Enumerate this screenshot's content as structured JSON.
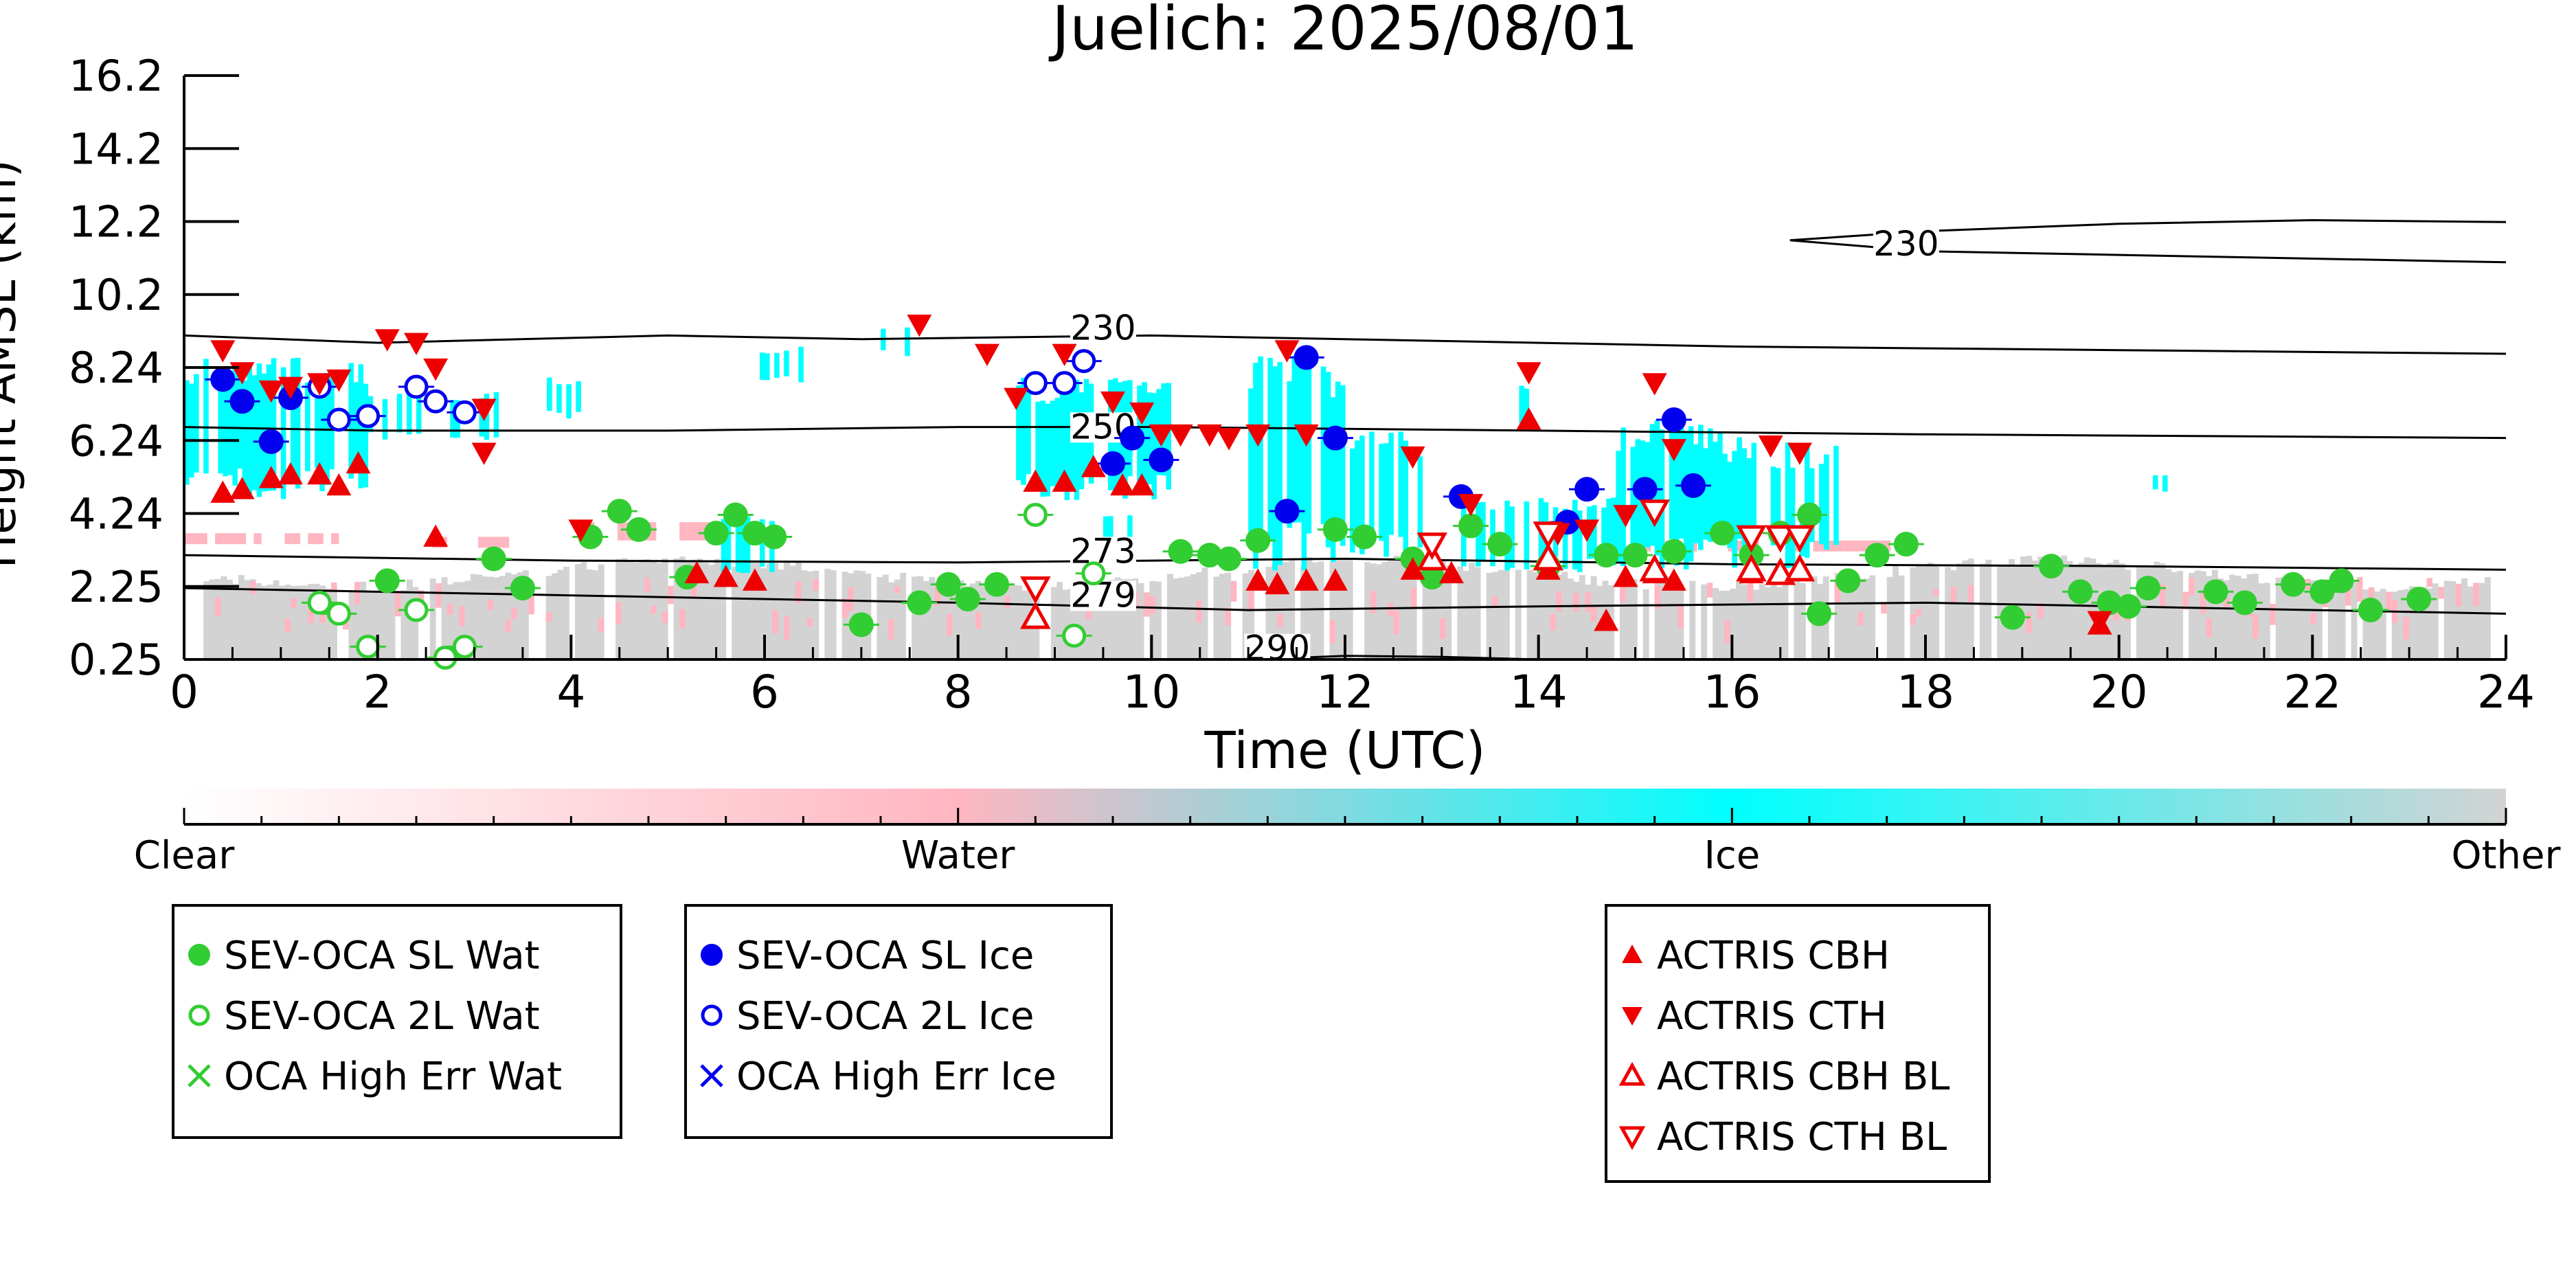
{
  "chart_data": {
    "type": "scatter",
    "title": "Juelich: 2025/08/01",
    "xlabel": "Time (UTC)",
    "ylabel": "Height AMSL (km)",
    "xlim": [
      0,
      24
    ],
    "ylim": [
      0.25,
      16.2
    ],
    "x_ticks": [
      0,
      2,
      4,
      6,
      8,
      10,
      12,
      14,
      16,
      18,
      20,
      22,
      24
    ],
    "y_tick_labels": [
      "0.25",
      "2.25",
      "4.24",
      "6.24",
      "8.24",
      "10.2",
      "12.2",
      "14.2",
      "16.2"
    ],
    "colorbar": {
      "labels": [
        "Clear",
        "Water",
        "Ice",
        "Other"
      ],
      "colors": [
        "#ffffff",
        "#ffb6c1",
        "#00ffff",
        "#d3d3d3"
      ]
    },
    "legends": [
      {
        "entries": [
          {
            "label": "SEV-OCA SL Wat",
            "marker": "filled-circle",
            "color": "#32cd32"
          },
          {
            "label": "SEV-OCA 2L Wat",
            "marker": "open-circle",
            "color": "#32cd32"
          },
          {
            "label": "OCA High Err Wat",
            "marker": "x",
            "color": "#32cd32"
          }
        ]
      },
      {
        "entries": [
          {
            "label": "SEV-OCA SL Ice",
            "marker": "filled-circle",
            "color": "#0000ee"
          },
          {
            "label": "SEV-OCA 2L Ice",
            "marker": "open-circle",
            "color": "#0000ee"
          },
          {
            "label": "OCA High Err Ice",
            "marker": "x",
            "color": "#0000ee"
          }
        ]
      },
      {
        "entries": [
          {
            "label": "ACTRIS CBH",
            "marker": "triangle-up",
            "color": "#ee0000"
          },
          {
            "label": "ACTRIS CTH",
            "marker": "triangle-down",
            "color": "#ee0000"
          },
          {
            "label": "ACTRIS CBH BL",
            "marker": "open-triangle-up",
            "color": "#ee0000"
          },
          {
            "label": "ACTRIS CTH BL",
            "marker": "open-triangle-down",
            "color": "#ee0000"
          }
        ]
      }
    ],
    "contours": [
      {
        "label": "230",
        "points": [
          [
            0,
            9.1
          ],
          [
            2,
            8.9
          ],
          [
            5,
            9.1
          ],
          [
            7,
            9.0
          ],
          [
            10,
            9.1
          ],
          [
            12,
            9.0
          ],
          [
            16,
            8.8
          ],
          [
            20,
            8.7
          ],
          [
            24,
            8.6
          ]
        ]
      },
      {
        "label": "230",
        "points": [
          [
            16.6,
            11.7
          ],
          [
            18,
            11.95
          ],
          [
            20,
            12.15
          ],
          [
            22,
            12.25
          ],
          [
            24,
            12.2
          ]
        ]
      },
      {
        "label": "230",
        "points": [
          [
            16.6,
            11.7
          ],
          [
            18,
            11.4
          ],
          [
            20,
            11.3
          ],
          [
            22,
            11.2
          ],
          [
            24,
            11.1
          ]
        ]
      },
      {
        "label": "250",
        "points": [
          [
            0,
            6.6
          ],
          [
            2,
            6.5
          ],
          [
            5,
            6.5
          ],
          [
            8,
            6.6
          ],
          [
            10,
            6.6
          ],
          [
            14,
            6.5
          ],
          [
            18,
            6.4
          ],
          [
            24,
            6.3
          ]
        ]
      },
      {
        "label": "273",
        "points": [
          [
            0,
            3.1
          ],
          [
            4,
            2.95
          ],
          [
            8,
            2.9
          ],
          [
            12,
            3.0
          ],
          [
            16,
            2.85
          ],
          [
            20,
            2.8
          ],
          [
            24,
            2.7
          ]
        ]
      },
      {
        "label": "279",
        "points": [
          [
            0,
            2.2
          ],
          [
            4,
            2.0
          ],
          [
            8,
            1.8
          ],
          [
            11,
            1.6
          ],
          [
            14,
            1.7
          ],
          [
            18,
            1.8
          ],
          [
            24,
            1.5
          ]
        ]
      },
      {
        "label": "290",
        "points": [
          [
            11.1,
            0.25
          ],
          [
            12,
            0.35
          ],
          [
            13,
            0.32
          ],
          [
            14,
            0.25
          ]
        ]
      }
    ],
    "series": [
      {
        "name": "SEV-OCA SL Wat",
        "points": [
          [
            2.1,
            2.4
          ],
          [
            3.2,
            3.0
          ],
          [
            3.5,
            2.2
          ],
          [
            4.2,
            3.6
          ],
          [
            4.5,
            4.3
          ],
          [
            4.7,
            3.8
          ],
          [
            5.2,
            2.5
          ],
          [
            5.5,
            3.7
          ],
          [
            5.7,
            4.2
          ],
          [
            5.9,
            3.7
          ],
          [
            6.1,
            3.6
          ],
          [
            7.0,
            1.2
          ],
          [
            7.6,
            1.8
          ],
          [
            7.9,
            2.3
          ],
          [
            8.1,
            1.9
          ],
          [
            8.4,
            2.3
          ],
          [
            10.3,
            3.2
          ],
          [
            10.6,
            3.1
          ],
          [
            10.8,
            3.0
          ],
          [
            11.1,
            3.5
          ],
          [
            11.9,
            3.8
          ],
          [
            12.2,
            3.6
          ],
          [
            12.7,
            3.0
          ],
          [
            12.9,
            2.5
          ],
          [
            13.3,
            3.9
          ],
          [
            13.6,
            3.4
          ],
          [
            14.1,
            2.8
          ],
          [
            14.7,
            3.1
          ],
          [
            15.0,
            3.1
          ],
          [
            15.4,
            3.2
          ],
          [
            15.9,
            3.7
          ],
          [
            16.2,
            3.1
          ],
          [
            16.5,
            3.7
          ],
          [
            16.8,
            4.2
          ],
          [
            16.9,
            1.5
          ],
          [
            17.2,
            2.4
          ],
          [
            17.5,
            3.1
          ],
          [
            17.8,
            3.4
          ],
          [
            18.9,
            1.4
          ],
          [
            19.3,
            2.8
          ],
          [
            19.6,
            2.1
          ],
          [
            19.9,
            1.8
          ],
          [
            20.1,
            1.7
          ],
          [
            20.3,
            2.2
          ],
          [
            21.0,
            2.1
          ],
          [
            21.3,
            1.8
          ],
          [
            21.8,
            2.3
          ],
          [
            22.1,
            2.1
          ],
          [
            22.3,
            2.4
          ],
          [
            22.6,
            1.6
          ],
          [
            23.1,
            1.9
          ]
        ]
      },
      {
        "name": "SEV-OCA 2L Wat",
        "points": [
          [
            1.4,
            1.8
          ],
          [
            1.6,
            1.5
          ],
          [
            1.9,
            0.6
          ],
          [
            2.4,
            1.6
          ],
          [
            2.7,
            0.3
          ],
          [
            2.9,
            0.6
          ],
          [
            8.8,
            4.2
          ],
          [
            9.2,
            0.9
          ],
          [
            9.4,
            2.6
          ]
        ]
      },
      {
        "name": "OCA High Err Wat",
        "points": []
      },
      {
        "name": "SEV-OCA SL Ice",
        "points": [
          [
            0.4,
            7.9
          ],
          [
            0.6,
            7.3
          ],
          [
            0.9,
            6.2
          ],
          [
            1.1,
            7.4
          ],
          [
            9.6,
            5.6
          ],
          [
            9.8,
            6.3
          ],
          [
            10.1,
            5.7
          ],
          [
            11.4,
            4.3
          ],
          [
            11.6,
            8.5
          ],
          [
            11.9,
            6.3
          ],
          [
            13.2,
            4.7
          ],
          [
            14.3,
            4.0
          ],
          [
            14.5,
            4.9
          ],
          [
            15.1,
            4.9
          ],
          [
            15.4,
            6.8
          ],
          [
            15.6,
            5.0
          ]
        ]
      },
      {
        "name": "SEV-OCA 2L Ice",
        "points": [
          [
            1.4,
            7.7
          ],
          [
            1.6,
            6.8
          ],
          [
            1.9,
            6.9
          ],
          [
            2.4,
            7.7
          ],
          [
            2.6,
            7.3
          ],
          [
            2.9,
            7.0
          ],
          [
            8.8,
            7.8
          ],
          [
            9.1,
            7.8
          ],
          [
            9.3,
            8.4
          ]
        ]
      },
      {
        "name": "OCA High Err Ice",
        "points": []
      },
      {
        "name": "ACTRIS CBH",
        "points": [
          [
            0.4,
            4.8
          ],
          [
            0.6,
            4.9
          ],
          [
            0.9,
            5.2
          ],
          [
            1.1,
            5.3
          ],
          [
            1.4,
            5.3
          ],
          [
            1.6,
            5.0
          ],
          [
            1.8,
            5.6
          ],
          [
            2.6,
            3.6
          ],
          [
            5.3,
            2.6
          ],
          [
            5.6,
            2.5
          ],
          [
            5.9,
            2.4
          ],
          [
            8.8,
            5.1
          ],
          [
            9.1,
            5.1
          ],
          [
            9.4,
            5.5
          ],
          [
            9.7,
            5.0
          ],
          [
            9.9,
            5.0
          ],
          [
            11.1,
            2.4
          ],
          [
            11.3,
            2.3
          ],
          [
            11.6,
            2.4
          ],
          [
            11.9,
            2.4
          ],
          [
            12.7,
            2.7
          ],
          [
            13.1,
            2.6
          ],
          [
            13.9,
            6.8
          ],
          [
            14.1,
            2.7
          ],
          [
            14.7,
            1.3
          ],
          [
            14.9,
            2.5
          ],
          [
            15.2,
            2.6
          ],
          [
            15.4,
            2.4
          ],
          [
            16.2,
            2.6
          ],
          [
            19.8,
            1.2
          ]
        ]
      },
      {
        "name": "ACTRIS CTH",
        "points": [
          [
            0.4,
            8.7
          ],
          [
            0.6,
            8.1
          ],
          [
            0.9,
            7.6
          ],
          [
            1.1,
            7.7
          ],
          [
            1.4,
            7.8
          ],
          [
            1.6,
            7.9
          ],
          [
            2.1,
            9.0
          ],
          [
            2.4,
            8.9
          ],
          [
            2.6,
            8.2
          ],
          [
            3.1,
            7.1
          ],
          [
            3.1,
            5.9
          ],
          [
            4.1,
            3.8
          ],
          [
            7.6,
            9.4
          ],
          [
            8.3,
            8.6
          ],
          [
            8.6,
            7.4
          ],
          [
            9.1,
            8.6
          ],
          [
            9.6,
            7.3
          ],
          [
            9.9,
            7.0
          ],
          [
            10.1,
            6.4
          ],
          [
            10.3,
            6.4
          ],
          [
            10.6,
            6.4
          ],
          [
            10.8,
            6.3
          ],
          [
            11.1,
            6.4
          ],
          [
            11.4,
            8.7
          ],
          [
            11.6,
            6.4
          ],
          [
            12.7,
            5.8
          ],
          [
            13.3,
            4.5
          ],
          [
            13.9,
            8.1
          ],
          [
            14.2,
            3.7
          ],
          [
            14.5,
            3.8
          ],
          [
            14.9,
            4.2
          ],
          [
            15.2,
            7.8
          ],
          [
            15.4,
            6.0
          ],
          [
            16.4,
            6.1
          ],
          [
            16.7,
            5.9
          ],
          [
            19.8,
            1.3
          ]
        ]
      },
      {
        "name": "ACTRIS CBH BL",
        "points": [
          [
            8.8,
            1.4
          ],
          [
            12.9,
            3.0
          ],
          [
            14.1,
            3.0
          ],
          [
            15.2,
            2.7
          ],
          [
            16.2,
            2.7
          ],
          [
            16.5,
            2.6
          ],
          [
            16.7,
            2.7
          ]
        ]
      },
      {
        "name": "ACTRIS CTH BL",
        "points": [
          [
            8.8,
            2.2
          ],
          [
            12.9,
            3.4
          ],
          [
            14.1,
            3.7
          ],
          [
            15.2,
            4.3
          ],
          [
            16.2,
            3.6
          ],
          [
            16.5,
            3.6
          ],
          [
            16.7,
            3.6
          ]
        ]
      }
    ]
  }
}
